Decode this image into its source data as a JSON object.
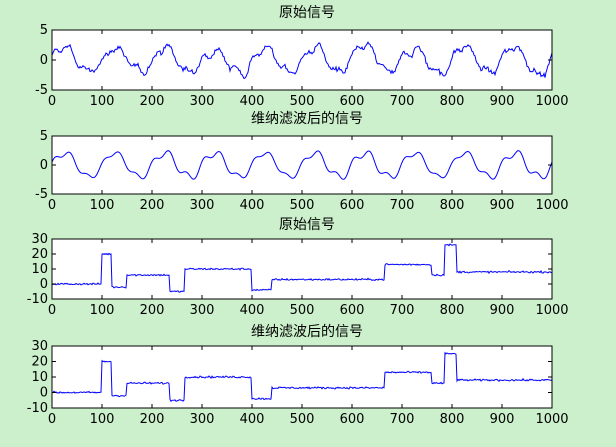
{
  "chart_data": [
    {
      "type": "line",
      "title": "原始信号",
      "xlim": [
        0,
        1000
      ],
      "ylim": [
        -5,
        5
      ],
      "xticks": [
        0,
        100,
        200,
        300,
        400,
        500,
        600,
        700,
        800,
        900,
        1000
      ],
      "yticks": [
        -5,
        0,
        5
      ],
      "signal": "sine",
      "amplitude": 2.2,
      "period": 100,
      "noisy": true,
      "series": [
        {
          "color": "#0000ff"
        }
      ]
    },
    {
      "type": "line",
      "title": "维纳滤波后的信号",
      "xlim": [
        0,
        1000
      ],
      "ylim": [
        -5,
        5
      ],
      "xticks": [
        0,
        100,
        200,
        300,
        400,
        500,
        600,
        700,
        800,
        900,
        1000
      ],
      "yticks": [
        -5,
        0,
        5
      ],
      "signal": "sine",
      "amplitude": 2.2,
      "period": 100,
      "noisy": false,
      "series": [
        {
          "color": "#0000ff"
        }
      ]
    },
    {
      "type": "line",
      "title": "原始信号",
      "xlim": [
        0,
        1000
      ],
      "ylim": [
        -10,
        30
      ],
      "xticks": [
        0,
        100,
        200,
        300,
        400,
        500,
        600,
        700,
        800,
        900,
        1000
      ],
      "yticks": [
        -10,
        0,
        10,
        20,
        30
      ],
      "signal": "step",
      "noisy": true,
      "steps": [
        {
          "x0": 0,
          "x1": 100,
          "y": 0
        },
        {
          "x0": 100,
          "x1": 120,
          "y": 20
        },
        {
          "x0": 120,
          "x1": 150,
          "y": -2
        },
        {
          "x0": 150,
          "x1": 235,
          "y": 6
        },
        {
          "x0": 235,
          "x1": 265,
          "y": -5
        },
        {
          "x0": 265,
          "x1": 400,
          "y": 10
        },
        {
          "x0": 400,
          "x1": 440,
          "y": -4
        },
        {
          "x0": 440,
          "x1": 665,
          "y": 3
        },
        {
          "x0": 665,
          "x1": 760,
          "y": 13
        },
        {
          "x0": 760,
          "x1": 785,
          "y": 6
        },
        {
          "x0": 785,
          "x1": 810,
          "y": 26
        },
        {
          "x0": 810,
          "x1": 1000,
          "y": 8
        }
      ],
      "series": [
        {
          "color": "#0000ff"
        }
      ]
    },
    {
      "type": "line",
      "title": "维纳滤波后的信号",
      "xlim": [
        0,
        1000
      ],
      "ylim": [
        -10,
        30
      ],
      "xticks": [
        0,
        100,
        200,
        300,
        400,
        500,
        600,
        700,
        800,
        900,
        1000
      ],
      "yticks": [
        -10,
        0,
        10,
        20,
        30
      ],
      "signal": "step",
      "noisy": true,
      "steps": [
        {
          "x0": 0,
          "x1": 100,
          "y": 0
        },
        {
          "x0": 100,
          "x1": 120,
          "y": 20
        },
        {
          "x0": 120,
          "x1": 150,
          "y": -2
        },
        {
          "x0": 150,
          "x1": 235,
          "y": 6
        },
        {
          "x0": 235,
          "x1": 265,
          "y": -5
        },
        {
          "x0": 265,
          "x1": 400,
          "y": 10
        },
        {
          "x0": 400,
          "x1": 440,
          "y": -4
        },
        {
          "x0": 440,
          "x1": 665,
          "y": 3
        },
        {
          "x0": 665,
          "x1": 760,
          "y": 13
        },
        {
          "x0": 760,
          "x1": 785,
          "y": 6
        },
        {
          "x0": 785,
          "x1": 810,
          "y": 25
        },
        {
          "x0": 810,
          "x1": 1000,
          "y": 8
        }
      ],
      "series": [
        {
          "color": "#0000ff"
        }
      ]
    }
  ]
}
